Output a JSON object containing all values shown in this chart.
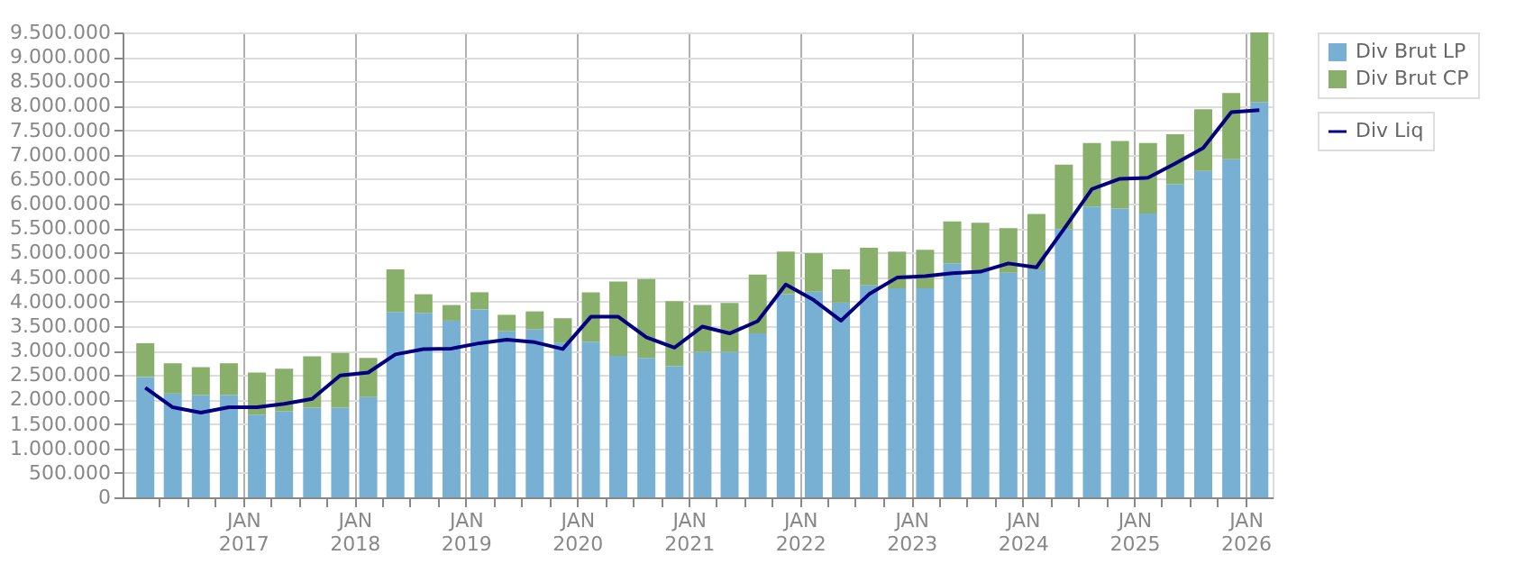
{
  "chart_data": {
    "type": "bar",
    "stacked": true,
    "x": [
      "2016-02-15",
      "2016-05-15",
      "2016-08-15",
      "2016-11-15",
      "2017-02-15",
      "2017-05-15",
      "2017-08-15",
      "2017-11-15",
      "2018-02-15",
      "2018-05-15",
      "2018-08-15",
      "2018-11-15",
      "2019-02-15",
      "2019-05-15",
      "2019-08-15",
      "2019-11-15",
      "2020-02-15",
      "2020-05-15",
      "2020-08-15",
      "2020-11-15",
      "2021-02-15",
      "2021-05-15",
      "2021-08-15",
      "2021-11-15",
      "2022-02-15",
      "2022-05-15",
      "2022-08-15",
      "2022-11-15",
      "2023-02-15",
      "2023-05-15",
      "2023-08-15",
      "2023-11-15",
      "2024-02-15",
      "2024-05-15",
      "2024-08-15",
      "2024-11-15",
      "2025-02-15",
      "2025-05-15",
      "2025-08-15",
      "2025-11-15",
      "2026-02-15"
    ],
    "series": [
      {
        "name": "Div Brut LP",
        "color": "#78b0d3",
        "values": [
          2460000,
          2120000,
          2090000,
          2090000,
          1690000,
          1760000,
          1830000,
          1830000,
          2050000,
          3790000,
          3770000,
          3610000,
          3840000,
          3400000,
          3430000,
          3160000,
          3180000,
          2890000,
          2850000,
          2680000,
          2970000,
          2970000,
          3350000,
          4150000,
          4200000,
          3980000,
          4330000,
          4270000,
          4270000,
          4780000,
          4640000,
          4590000,
          4660000,
          5480000,
          5940000,
          5900000,
          5800000,
          6400000,
          6670000,
          6910000,
          8080000
        ]
      },
      {
        "name": "Div Brut CP",
        "color": "#88b06a",
        "values": [
          690000,
          620000,
          570000,
          650000,
          860000,
          870000,
          1050000,
          1120000,
          800000,
          870000,
          380000,
          320000,
          350000,
          330000,
          370000,
          500000,
          1010000,
          1520000,
          1610000,
          1330000,
          960000,
          1000000,
          1200000,
          870000,
          790000,
          680000,
          770000,
          750000,
          790000,
          860000,
          970000,
          910000,
          1130000,
          1320000,
          1300000,
          1380000,
          1440000,
          1020000,
          1260000,
          1350000,
          1420000
        ]
      },
      {
        "name": "Div Liq",
        "type": "line",
        "color": "#000080",
        "values": [
          2240000,
          1840000,
          1730000,
          1840000,
          1840000,
          1910000,
          2010000,
          2490000,
          2550000,
          2920000,
          3030000,
          3040000,
          3150000,
          3220000,
          3170000,
          3030000,
          3690000,
          3690000,
          3270000,
          3060000,
          3490000,
          3350000,
          3600000,
          4350000,
          4030000,
          3610000,
          4150000,
          4490000,
          4520000,
          4580000,
          4610000,
          4780000,
          4700000,
          5480000,
          6300000,
          6510000,
          6530000,
          6820000,
          7140000,
          7870000,
          7910000
        ]
      }
    ],
    "ylim": [
      0,
      9500000
    ],
    "yticks": [
      {
        "value": 0,
        "label": "0"
      },
      {
        "value": 500000,
        "label": "500.000"
      },
      {
        "value": 1000000,
        "label": "1.000.000"
      },
      {
        "value": 1500000,
        "label": "1.500.000"
      },
      {
        "value": 2000000,
        "label": "2.000.000"
      },
      {
        "value": 2500000,
        "label": "2.500.000"
      },
      {
        "value": 3000000,
        "label": "3.000.000"
      },
      {
        "value": 3500000,
        "label": "3.500.000"
      },
      {
        "value": 4000000,
        "label": "4.000.000"
      },
      {
        "value": 4500000,
        "label": "4.500.000"
      },
      {
        "value": 5000000,
        "label": "5.000.000"
      },
      {
        "value": 5500000,
        "label": "5.500.000"
      },
      {
        "value": 6000000,
        "label": "6.000.000"
      },
      {
        "value": 6500000,
        "label": "6.500.000"
      },
      {
        "value": 7000000,
        "label": "7.000.000"
      },
      {
        "value": 7500000,
        "label": "7.500.000"
      },
      {
        "value": 8000000,
        "label": "8.000.000"
      },
      {
        "value": 8500000,
        "label": "8.500.000"
      },
      {
        "value": 9000000,
        "label": "9.000.000"
      },
      {
        "value": 9500000,
        "label": "9.500.000"
      }
    ],
    "xlim": [
      "2016-01-01",
      "2026-03-01"
    ],
    "xticks": [
      {
        "value": "2016-04-01",
        "label": null
      },
      {
        "value": "2016-07-01",
        "label": null
      },
      {
        "value": "2016-10-01",
        "label": null
      },
      {
        "value": "2017-01-01",
        "label": "JAN 2017"
      },
      {
        "value": "2017-04-01",
        "label": null
      },
      {
        "value": "2017-07-01",
        "label": null
      },
      {
        "value": "2017-10-01",
        "label": null
      },
      {
        "value": "2018-01-01",
        "label": "JAN 2018"
      },
      {
        "value": "2018-04-01",
        "label": null
      },
      {
        "value": "2018-07-01",
        "label": null
      },
      {
        "value": "2018-10-01",
        "label": null
      },
      {
        "value": "2019-01-01",
        "label": "JAN 2019"
      },
      {
        "value": "2019-04-01",
        "label": null
      },
      {
        "value": "2019-07-01",
        "label": null
      },
      {
        "value": "2019-10-01",
        "label": null
      },
      {
        "value": "2020-01-01",
        "label": "JAN 2020"
      },
      {
        "value": "2020-04-01",
        "label": null
      },
      {
        "value": "2020-07-01",
        "label": null
      },
      {
        "value": "2020-10-01",
        "label": null
      },
      {
        "value": "2021-01-01",
        "label": "JAN 2021"
      },
      {
        "value": "2021-04-01",
        "label": null
      },
      {
        "value": "2021-07-01",
        "label": null
      },
      {
        "value": "2021-10-01",
        "label": null
      },
      {
        "value": "2022-01-01",
        "label": "JAN 2022"
      },
      {
        "value": "2022-04-01",
        "label": null
      },
      {
        "value": "2022-07-01",
        "label": null
      },
      {
        "value": "2022-10-01",
        "label": null
      },
      {
        "value": "2023-01-01",
        "label": "JAN 2023"
      },
      {
        "value": "2023-04-01",
        "label": null
      },
      {
        "value": "2023-07-01",
        "label": null
      },
      {
        "value": "2023-10-01",
        "label": null
      },
      {
        "value": "2024-01-01",
        "label": "JAN 2024"
      },
      {
        "value": "2024-04-01",
        "label": null
      },
      {
        "value": "2024-07-01",
        "label": null
      },
      {
        "value": "2024-10-01",
        "label": null
      },
      {
        "value": "2025-01-01",
        "label": "JAN 2025"
      },
      {
        "value": "2025-04-01",
        "label": null
      },
      {
        "value": "2025-07-01",
        "label": null
      },
      {
        "value": "2025-10-01",
        "label": null
      },
      {
        "value": "2026-01-01",
        "label": "JAN 2026"
      }
    ],
    "grid": true,
    "legend": "top right",
    "line_style": "solid",
    "marker": "none"
  }
}
